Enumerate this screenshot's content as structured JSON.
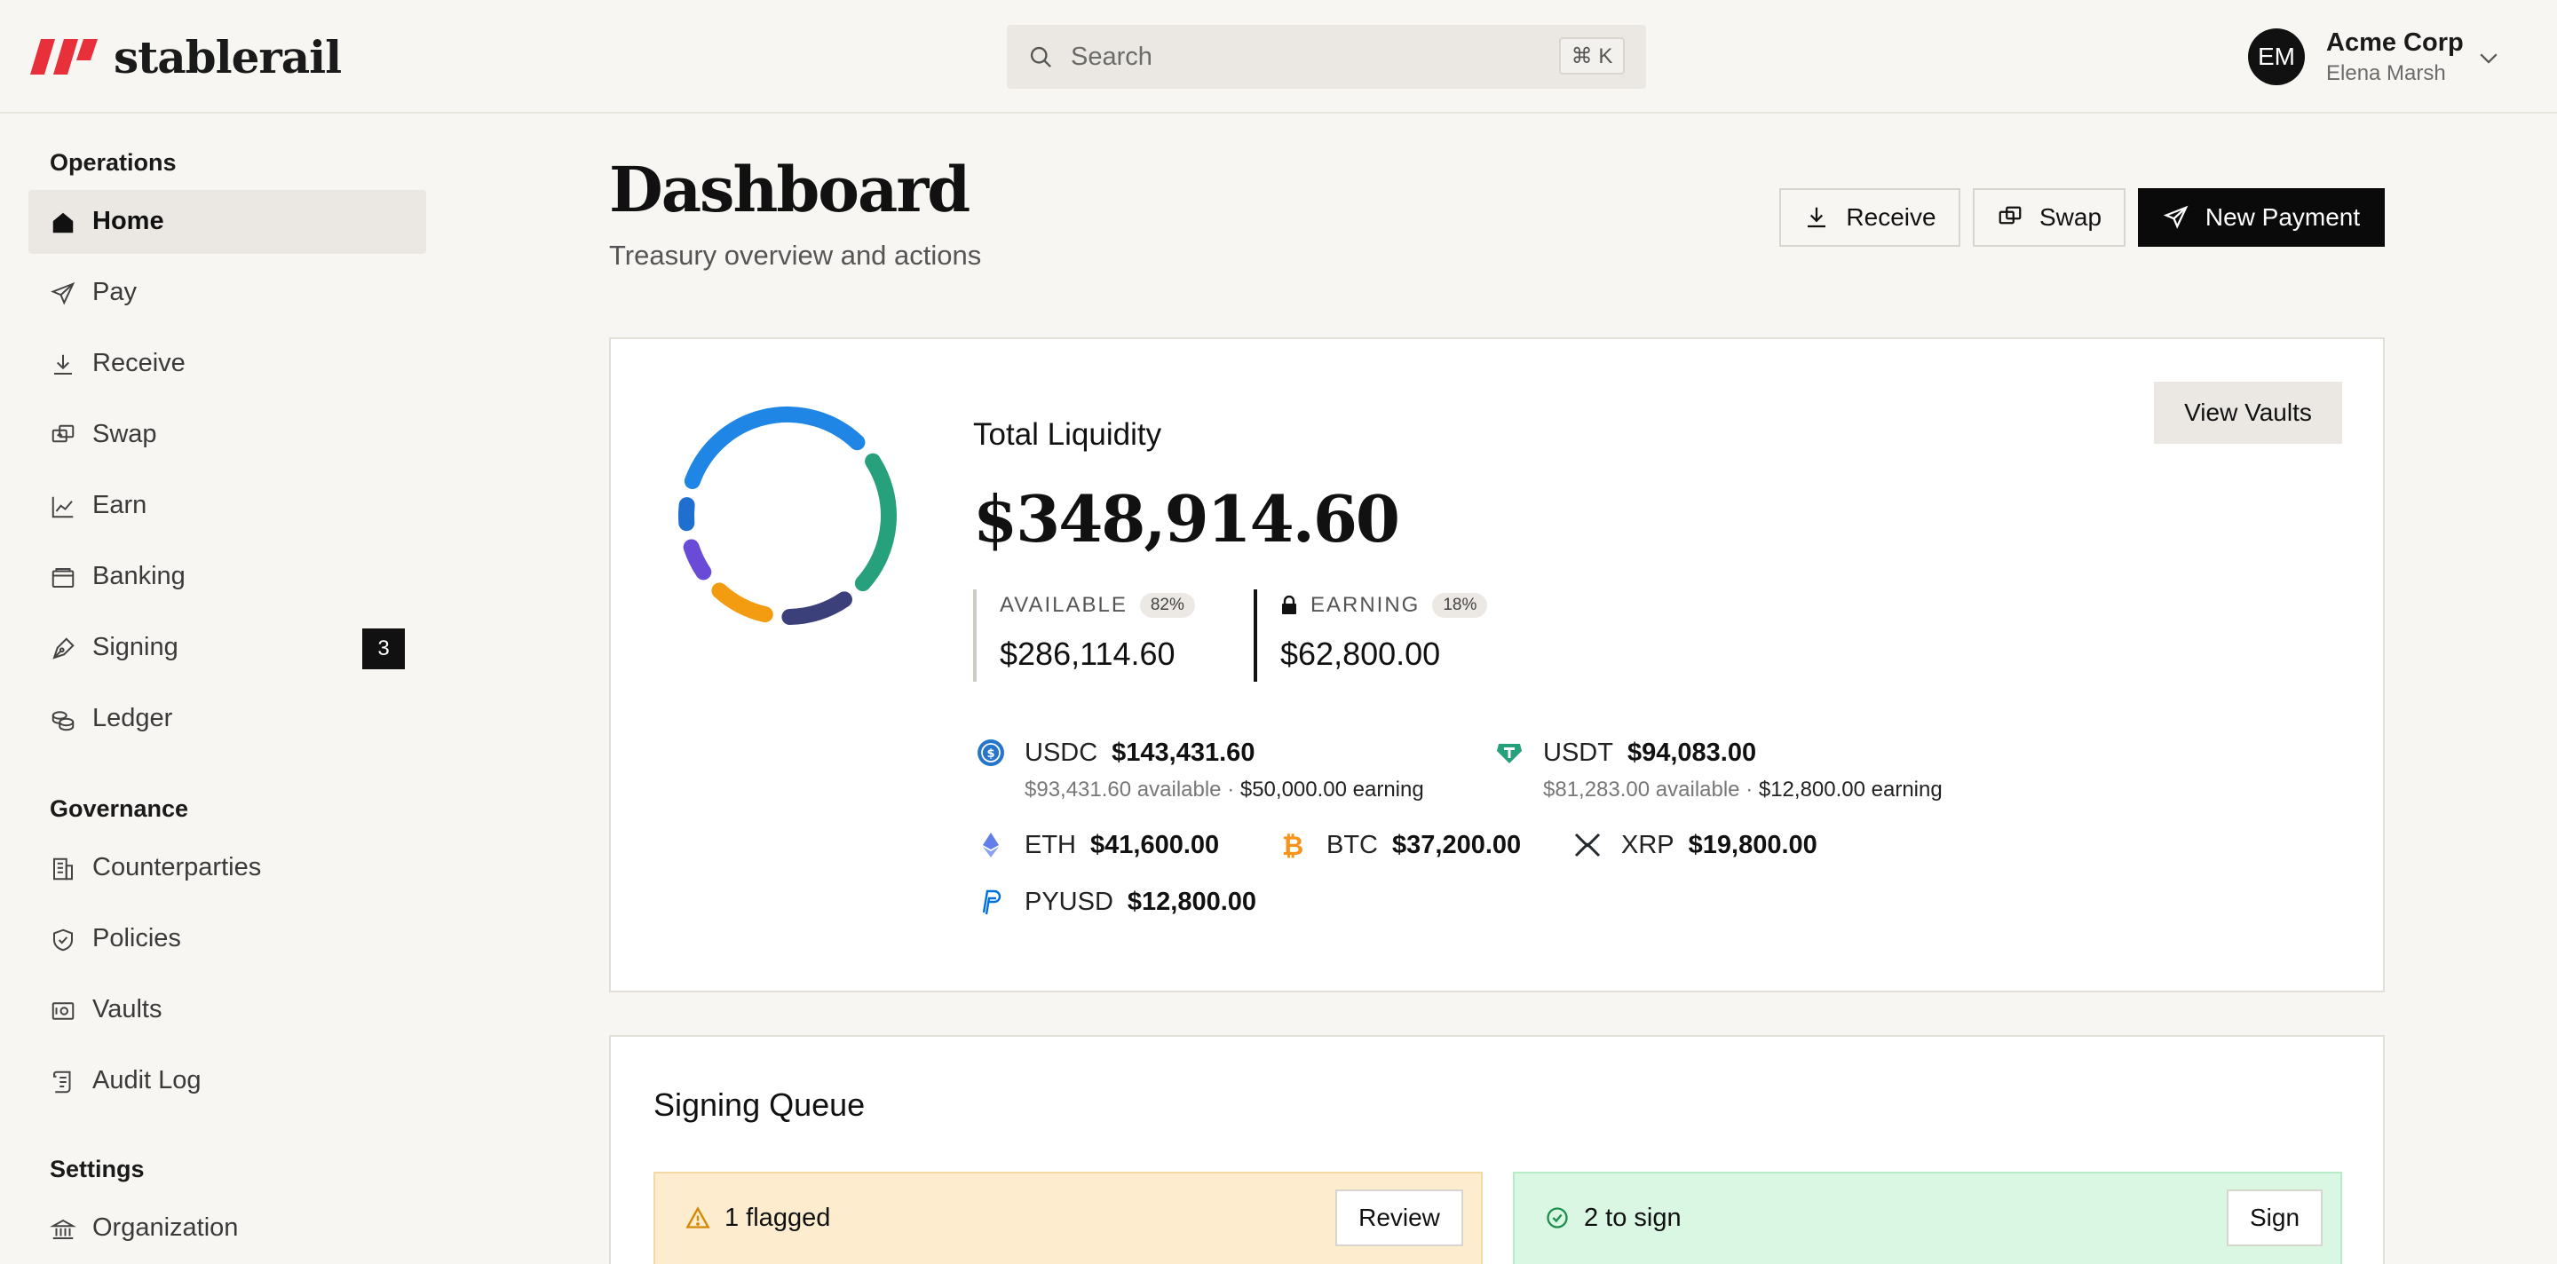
{
  "brand": {
    "name": "stablerail",
    "color": "#e8303a"
  },
  "search": {
    "placeholder": "Search",
    "shortcut": "⌘ K"
  },
  "user": {
    "initials": "EM",
    "org": "Acme Corp",
    "name": "Elena Marsh"
  },
  "sidebar": {
    "sections": [
      {
        "title": "Operations",
        "items": [
          {
            "label": "Home",
            "icon": "home-icon",
            "active": true
          },
          {
            "label": "Pay",
            "icon": "send-icon"
          },
          {
            "label": "Receive",
            "icon": "download-icon"
          },
          {
            "label": "Swap",
            "icon": "swap-icon"
          },
          {
            "label": "Earn",
            "icon": "chart-icon"
          },
          {
            "label": "Banking",
            "icon": "wallet-icon"
          },
          {
            "label": "Signing",
            "icon": "pen-icon",
            "badge": "3"
          },
          {
            "label": "Ledger",
            "icon": "coins-icon"
          }
        ]
      },
      {
        "title": "Governance",
        "items": [
          {
            "label": "Counterparties",
            "icon": "building-icon"
          },
          {
            "label": "Policies",
            "icon": "shield-icon"
          },
          {
            "label": "Vaults",
            "icon": "vault-icon"
          },
          {
            "label": "Audit Log",
            "icon": "scroll-icon"
          }
        ]
      },
      {
        "title": "Settings",
        "items": [
          {
            "label": "Organization",
            "icon": "bank-icon"
          }
        ]
      }
    ]
  },
  "header": {
    "title": "Dashboard",
    "subtitle": "Treasury overview and actions",
    "actions": {
      "receive": "Receive",
      "swap": "Swap",
      "new_payment": "New Payment"
    }
  },
  "liquidity": {
    "label": "Total Liquidity",
    "total": "$348,914.60",
    "view_vaults": "View Vaults",
    "available": {
      "label": "AVAILABLE",
      "pct": "82%",
      "value": "$286,114.60"
    },
    "earning": {
      "label": "EARNING",
      "pct": "18%",
      "value": "$62,800.00"
    },
    "assets": [
      {
        "symbol": "USDC",
        "amount": "$143,431.60",
        "available": "$93,431.60 available",
        "earning": "$50,000.00 earning",
        "color": "#2775ca",
        "icon": "usdc-icon"
      },
      {
        "symbol": "USDT",
        "amount": "$94,083.00",
        "available": "$81,283.00 available",
        "earning": "$12,800.00 earning",
        "color": "#26a17b",
        "icon": "usdt-icon"
      },
      {
        "symbol": "ETH",
        "amount": "$41,600.00",
        "color": "#627eea",
        "icon": "eth-icon"
      },
      {
        "symbol": "BTC",
        "amount": "$37,200.00",
        "color": "#f7931a",
        "icon": "btc-icon"
      },
      {
        "symbol": "XRP",
        "amount": "$19,800.00",
        "color": "#23292f",
        "icon": "xrp-icon"
      },
      {
        "symbol": "PYUSD",
        "amount": "$12,800.00",
        "color": "#0070e0",
        "icon": "pyusd-icon"
      }
    ],
    "donut_segments": [
      {
        "asset": "USDC",
        "value": 143431.6,
        "color": "#1f86e5"
      },
      {
        "asset": "USDT",
        "value": 94083.0,
        "color": "#26a17b"
      },
      {
        "asset": "ETH",
        "value": 41600.0,
        "color": "#3b3f7a"
      },
      {
        "asset": "BTC",
        "value": 37200.0,
        "color": "#f39c12"
      },
      {
        "asset": "XRP",
        "value": 19800.0,
        "color": "#6a4bd8"
      },
      {
        "asset": "PYUSD",
        "value": 12800.0,
        "color": "#1f6fd0"
      }
    ]
  },
  "signing_queue": {
    "title": "Signing Queue",
    "flagged": {
      "label": "1 flagged",
      "action": "Review"
    },
    "to_sign": {
      "label": "2 to sign",
      "action": "Sign"
    }
  }
}
